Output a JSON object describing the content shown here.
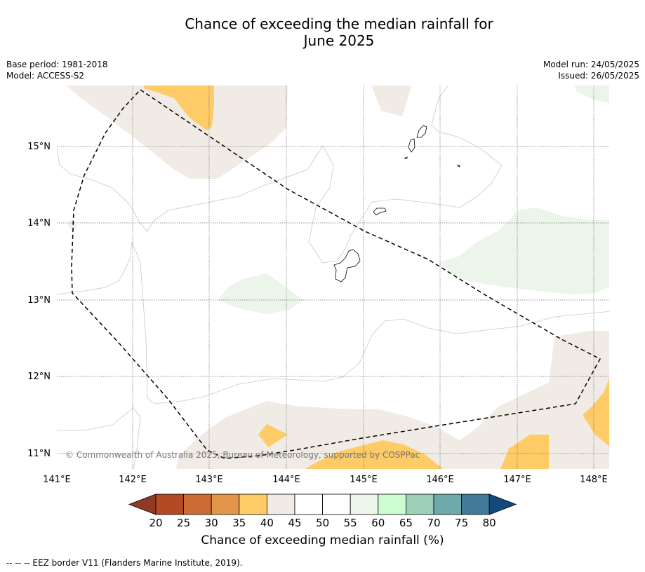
{
  "title_line1": "Chance of exceeding the median rainfall for",
  "title_line2": "June 2025",
  "base_period": "Base period: 1981-2018",
  "model": "Model: ACCESS-S2",
  "model_run": "Model run: 24/05/2025",
  "issued": "Issued: 26/05/2025",
  "copyright": "© Commonwealth of Australia 2025, Bureau of Meteorology, supported by COSPPac",
  "lat_labels": [
    "15°N",
    "14°N",
    "13°N",
    "12°N",
    "11°N"
  ],
  "lon_labels": [
    "141°E",
    "142°E",
    "143°E",
    "144°E",
    "145°E",
    "146°E",
    "147°E",
    "148°E"
  ],
  "colorbar": {
    "label": "Chance of exceeding median rainfall (%)",
    "ticks": [
      "20",
      "25",
      "30",
      "35",
      "40",
      "45",
      "50",
      "55",
      "60",
      "65",
      "70",
      "75",
      "80"
    ],
    "under_color": "#8f3a22",
    "over_color": "#124a80",
    "colors": [
      "#b34a25",
      "#cc6a35",
      "#e3964a",
      "#fecb66",
      "#f0ebe4",
      "#ffffff",
      "#ffffff",
      "#ebf5e9",
      "#ccfdd0",
      "#9dcfb8",
      "#6fa9a9",
      "#427a97"
    ]
  },
  "footnote": "--  --  -- EEZ border V11 (Flanders Marine Institute, 2019)."
}
